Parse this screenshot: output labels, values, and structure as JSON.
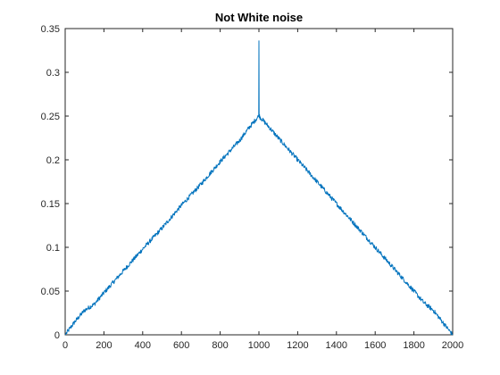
{
  "chart_data": {
    "type": "line",
    "title": "Not White noise",
    "xlabel": "",
    "ylabel": "",
    "xlim": [
      0,
      2000
    ],
    "ylim": [
      0,
      0.35
    ],
    "x_ticks": [
      "0",
      "200",
      "400",
      "600",
      "800",
      "1000",
      "1200",
      "1400",
      "1600",
      "1800",
      "2000"
    ],
    "y_ticks": [
      "0",
      "0.05",
      "0.1",
      "0.15",
      "0.2",
      "0.25",
      "0.3",
      "0.35"
    ],
    "grid": false,
    "box": true,
    "series": [
      {
        "color": "#0072BD",
        "x": [
          0,
          50,
          100,
          150,
          200,
          300,
          400,
          500,
          600,
          700,
          800,
          900,
          950,
          995,
          999,
          1000,
          1001,
          1005,
          1050,
          1100,
          1200,
          1300,
          1400,
          1500,
          1600,
          1700,
          1800,
          1850,
          1900,
          1950,
          2000
        ],
        "y": [
          0,
          0.015,
          0.028,
          0.035,
          0.048,
          0.073,
          0.098,
          0.122,
          0.148,
          0.172,
          0.198,
          0.222,
          0.237,
          0.249,
          0.25,
          0.336,
          0.251,
          0.249,
          0.238,
          0.225,
          0.2,
          0.175,
          0.15,
          0.125,
          0.1,
          0.075,
          0.05,
          0.037,
          0.028,
          0.014,
          0
        ]
      }
    ]
  }
}
